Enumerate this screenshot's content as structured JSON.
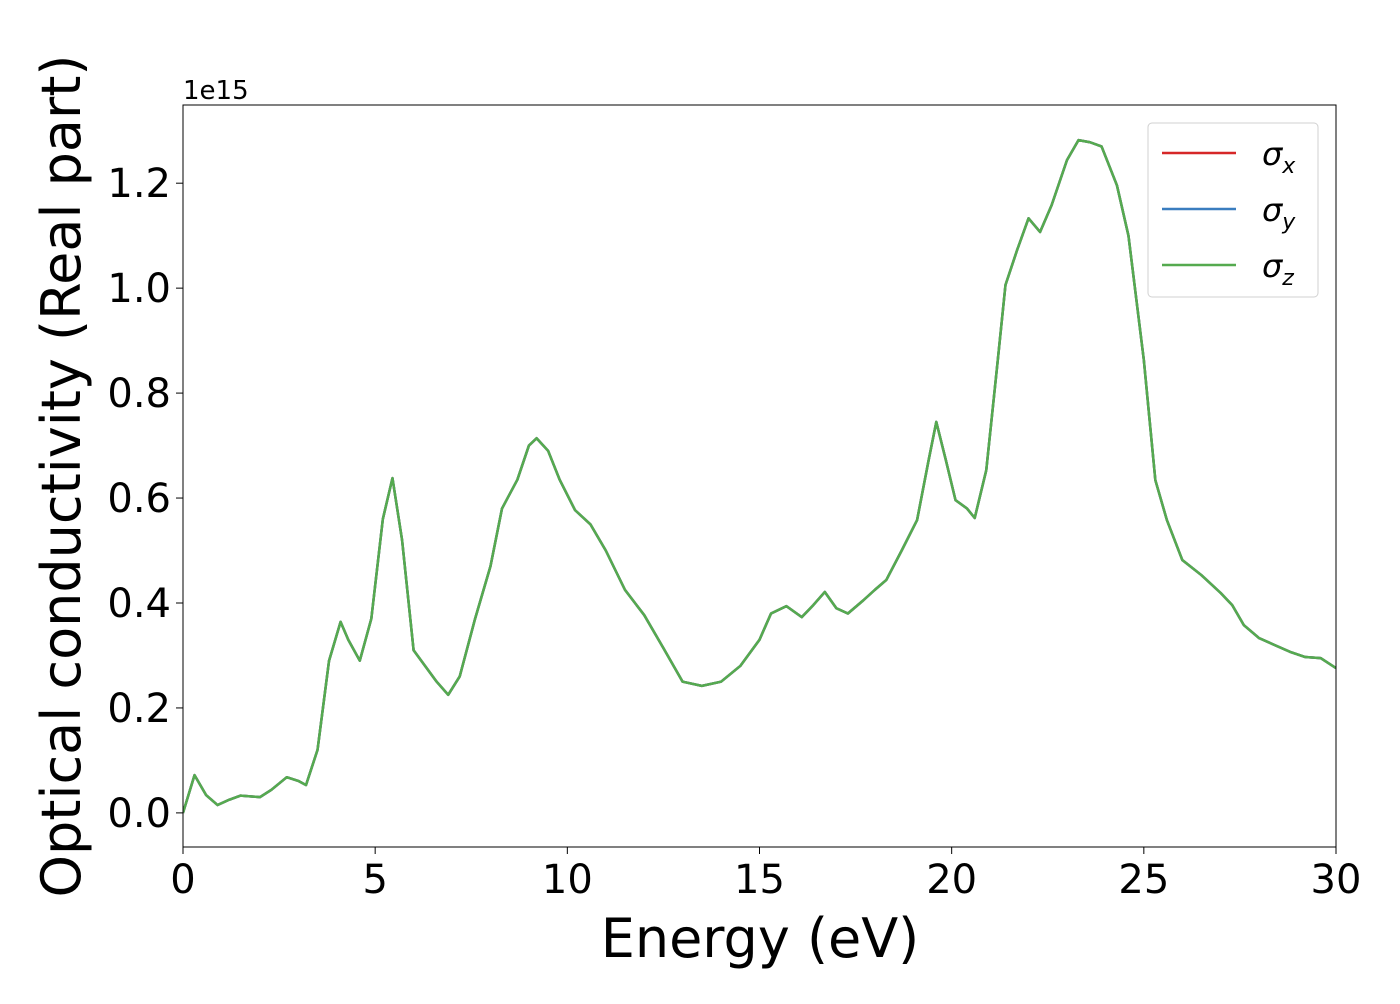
{
  "chart_data": {
    "type": "line",
    "xlabel": "Energy (eV)",
    "ylabel": "Optical conductivity (Real part)",
    "y_offset_label": "1e15",
    "x": [
      0,
      0.3,
      0.6,
      0.9,
      1.2,
      1.5,
      2.0,
      2.3,
      2.7,
      3.0,
      3.2,
      3.5,
      3.8,
      4.1,
      4.3,
      4.6,
      4.9,
      5.2,
      5.45,
      5.7,
      6.0,
      6.3,
      6.6,
      6.9,
      7.2,
      7.6,
      8.0,
      8.3,
      8.7,
      9.0,
      9.2,
      9.5,
      9.8,
      10.2,
      10.6,
      11.0,
      11.5,
      12.0,
      12.5,
      13.0,
      13.5,
      14.0,
      14.5,
      15.0,
      15.3,
      15.7,
      16.1,
      16.4,
      16.7,
      17.0,
      17.3,
      17.7,
      18.0,
      18.3,
      18.7,
      19.1,
      19.4,
      19.6,
      19.85,
      20.1,
      20.4,
      20.6,
      20.9,
      21.2,
      21.4,
      21.7,
      22.0,
      22.3,
      22.6,
      23.0,
      23.3,
      23.6,
      23.9,
      24.3,
      24.6,
      25.0,
      25.3,
      25.6,
      26.0,
      26.5,
      27.0,
      27.3,
      27.6,
      28.0,
      28.4,
      28.8,
      29.2,
      29.6,
      30.0
    ],
    "series": [
      {
        "name": "σx",
        "color": "#d62728",
        "values": [
          0.0,
          0.072,
          0.034,
          0.015,
          0.025,
          0.033,
          0.03,
          0.044,
          0.068,
          0.061,
          0.053,
          0.12,
          0.29,
          0.364,
          0.33,
          0.29,
          0.37,
          0.56,
          0.638,
          0.52,
          0.31,
          0.28,
          0.25,
          0.225,
          0.26,
          0.37,
          0.47,
          0.58,
          0.635,
          0.7,
          0.714,
          0.69,
          0.635,
          0.577,
          0.55,
          0.5,
          0.425,
          0.377,
          0.314,
          0.25,
          0.242,
          0.25,
          0.28,
          0.33,
          0.38,
          0.394,
          0.373,
          0.396,
          0.421,
          0.39,
          0.38,
          0.405,
          0.425,
          0.444,
          0.5,
          0.558,
          0.672,
          0.745,
          0.672,
          0.596,
          0.58,
          0.562,
          0.653,
          0.863,
          1.006,
          1.072,
          1.133,
          1.107,
          1.158,
          1.244,
          1.282,
          1.278,
          1.27,
          1.196,
          1.1,
          0.863,
          0.634,
          0.558,
          0.482,
          0.453,
          0.419,
          0.396,
          0.358,
          0.333,
          0.32,
          0.307,
          0.297,
          0.295,
          0.276
        ]
      },
      {
        "name": "σy",
        "color": "#3a7dbf",
        "values": [
          0.0,
          0.072,
          0.034,
          0.015,
          0.025,
          0.033,
          0.03,
          0.044,
          0.068,
          0.061,
          0.053,
          0.12,
          0.29,
          0.364,
          0.33,
          0.29,
          0.37,
          0.56,
          0.638,
          0.52,
          0.31,
          0.28,
          0.25,
          0.225,
          0.26,
          0.37,
          0.47,
          0.58,
          0.635,
          0.7,
          0.714,
          0.69,
          0.635,
          0.577,
          0.55,
          0.5,
          0.425,
          0.377,
          0.314,
          0.25,
          0.242,
          0.25,
          0.28,
          0.33,
          0.38,
          0.394,
          0.373,
          0.396,
          0.421,
          0.39,
          0.38,
          0.405,
          0.425,
          0.444,
          0.5,
          0.558,
          0.672,
          0.745,
          0.672,
          0.596,
          0.58,
          0.562,
          0.653,
          0.863,
          1.006,
          1.072,
          1.133,
          1.107,
          1.158,
          1.244,
          1.282,
          1.278,
          1.27,
          1.196,
          1.1,
          0.863,
          0.634,
          0.558,
          0.482,
          0.453,
          0.419,
          0.396,
          0.358,
          0.333,
          0.32,
          0.307,
          0.297,
          0.295,
          0.276
        ]
      },
      {
        "name": "σz",
        "color": "#55aa4f",
        "values": [
          0.0,
          0.072,
          0.034,
          0.015,
          0.025,
          0.033,
          0.03,
          0.044,
          0.068,
          0.061,
          0.053,
          0.12,
          0.29,
          0.364,
          0.33,
          0.29,
          0.37,
          0.56,
          0.638,
          0.52,
          0.31,
          0.28,
          0.25,
          0.225,
          0.26,
          0.37,
          0.47,
          0.58,
          0.635,
          0.7,
          0.714,
          0.69,
          0.635,
          0.577,
          0.55,
          0.5,
          0.425,
          0.377,
          0.314,
          0.25,
          0.242,
          0.25,
          0.28,
          0.33,
          0.38,
          0.394,
          0.373,
          0.396,
          0.421,
          0.39,
          0.38,
          0.405,
          0.425,
          0.444,
          0.5,
          0.558,
          0.672,
          0.745,
          0.672,
          0.596,
          0.58,
          0.562,
          0.653,
          0.863,
          1.006,
          1.072,
          1.133,
          1.107,
          1.158,
          1.244,
          1.282,
          1.278,
          1.27,
          1.196,
          1.1,
          0.863,
          0.634,
          0.558,
          0.482,
          0.453,
          0.419,
          0.396,
          0.358,
          0.333,
          0.32,
          0.307,
          0.297,
          0.295,
          0.276
        ]
      }
    ],
    "xlim": [
      0,
      30
    ],
    "xticks": [
      0,
      5,
      10,
      15,
      20,
      25,
      30
    ],
    "ylim": [
      -0.065,
      1.349
    ],
    "yticks": [
      {
        "value": 0,
        "label": "0.0"
      },
      0.2,
      0.4,
      0.6,
      0.8,
      {
        "value": 1,
        "label": "1.0"
      },
      1.2
    ],
    "legend": "upper right",
    "grid": false
  }
}
